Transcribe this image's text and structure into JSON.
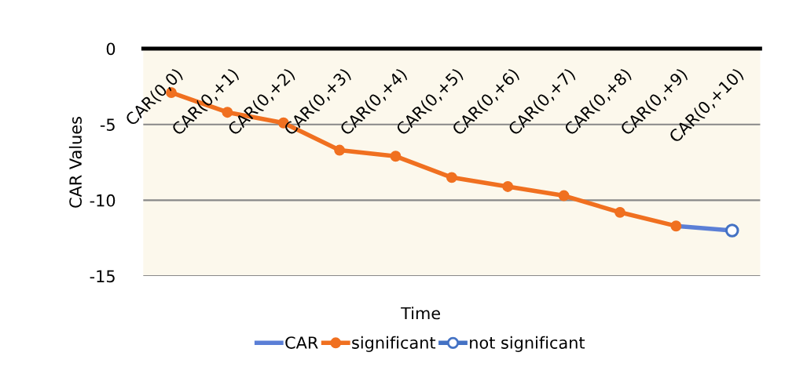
{
  "chart_data": {
    "type": "line",
    "xlabel": "Time",
    "ylabel": "CAR Values",
    "categories": [
      "CAR(0,0)",
      "CAR(0,+1)",
      "CAR(0,+2)",
      "CAR(0,+3)",
      "CAR(0,+4)",
      "CAR(0,+5)",
      "CAR(0,+6)",
      "CAR(0,+7)",
      "CAR(0,+8)",
      "CAR(0,+9)",
      "CAR(0,+10)"
    ],
    "series": [
      {
        "name": "CAR",
        "color": "#5b7fd6",
        "marker": "none",
        "values": [
          null,
          null,
          null,
          null,
          null,
          null,
          null,
          null,
          null,
          -11.7,
          -12.0
        ]
      },
      {
        "name": "significant",
        "color": "#f07020",
        "marker": "circle",
        "values": [
          -2.9,
          -4.2,
          -4.9,
          -6.7,
          -7.1,
          -8.5,
          -9.1,
          -9.7,
          -10.8,
          -11.7,
          null
        ]
      },
      {
        "name": "not significant",
        "type": "scatter",
        "color": "#4472c4",
        "marker": "circle",
        "values": [
          null,
          null,
          null,
          null,
          null,
          null,
          null,
          null,
          null,
          null,
          -12.0
        ]
      }
    ],
    "ylim": [
      -15,
      0
    ],
    "yticks": [
      0,
      -5,
      -10,
      -15
    ],
    "grid": "y",
    "legend": "bottom"
  }
}
